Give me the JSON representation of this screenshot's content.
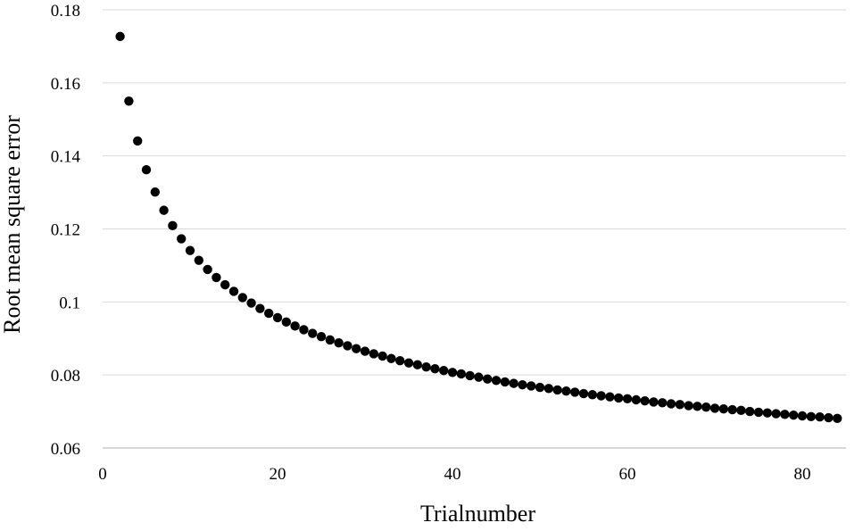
{
  "chart_data": {
    "type": "scatter",
    "title": "",
    "xlabel": "Trialnumber",
    "ylabel": "Root mean square error",
    "xlim": [
      0,
      85
    ],
    "ylim": [
      0.06,
      0.18
    ],
    "x_ticks": [
      "0",
      "20",
      "40",
      "60",
      "80"
    ],
    "y_ticks": [
      "0.06",
      "0.08",
      "0.1",
      "0.12",
      "0.14",
      "0.16",
      "0.18"
    ],
    "grid": "horizontal",
    "legend": "none",
    "marker_color": "#000000",
    "series": [
      {
        "x": [
          2,
          3,
          4,
          5,
          6,
          7,
          8,
          9,
          10,
          11,
          12,
          13,
          14,
          15,
          16,
          17,
          18,
          19,
          20,
          21,
          22,
          23,
          24,
          25,
          26,
          27,
          28,
          29,
          30,
          31,
          32,
          33,
          34,
          35,
          36,
          37,
          38,
          39,
          40,
          41,
          42,
          43,
          44,
          45,
          46,
          47,
          48,
          49,
          50,
          51,
          52,
          53,
          54,
          55,
          56,
          57,
          58,
          59,
          60,
          61,
          62,
          63,
          64,
          65,
          66,
          67,
          68,
          69,
          70,
          71,
          72,
          73,
          74,
          75,
          76,
          77,
          78,
          79,
          80,
          81,
          82,
          83,
          84
        ],
        "y": [
          0.1727,
          0.155,
          0.1441,
          0.1362,
          0.1301,
          0.1251,
          0.1209,
          0.1173,
          0.1141,
          0.1114,
          0.1089,
          0.1067,
          0.1047,
          0.1029,
          0.1012,
          0.0997,
          0.0982,
          0.0969,
          0.0957,
          0.0945,
          0.0934,
          0.0924,
          0.0914,
          0.0905,
          0.0896,
          0.0888,
          0.088,
          0.0872,
          0.0865,
          0.0858,
          0.0852,
          0.0845,
          0.0839,
          0.0833,
          0.0828,
          0.0822,
          0.0817,
          0.0812,
          0.0807,
          0.0803,
          0.0798,
          0.0794,
          0.0789,
          0.0785,
          0.0781,
          0.0777,
          0.0773,
          0.077,
          0.0766,
          0.0763,
          0.0759,
          0.0756,
          0.0753,
          0.0749,
          0.0746,
          0.0743,
          0.074,
          0.0737,
          0.0735,
          0.0732,
          0.0729,
          0.0726,
          0.0724,
          0.0721,
          0.0719,
          0.0716,
          0.0714,
          0.0712,
          0.0709,
          0.0707,
          0.0705,
          0.0703,
          0.07,
          0.0698,
          0.0696,
          0.0694,
          0.0692,
          0.069,
          0.0688,
          0.0686,
          0.0685,
          0.0683,
          0.0681
        ]
      }
    ]
  }
}
